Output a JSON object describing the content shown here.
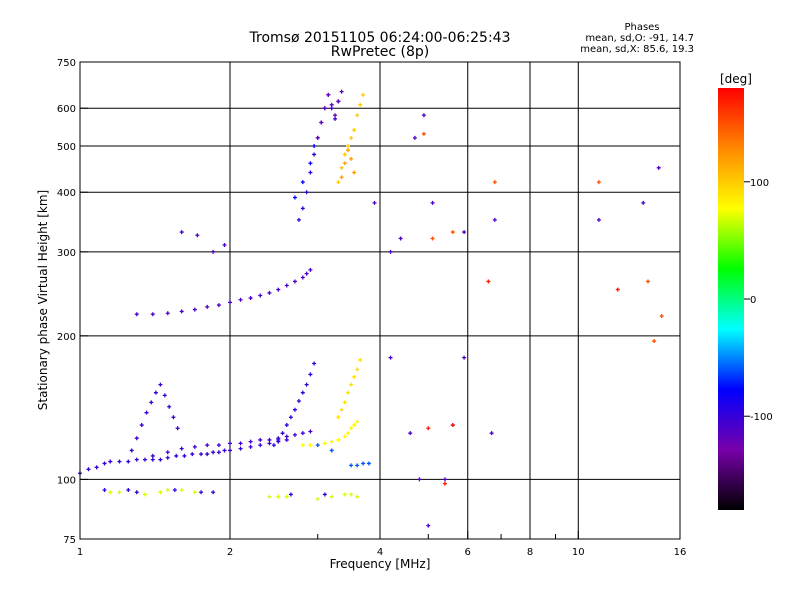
{
  "chart_data": {
    "type": "scatter",
    "title": "Tromsø 20151105 06:24:00-06:25:43",
    "subtitle": "RwPretec (8p)",
    "xlabel": "Frequency [MHz]",
    "ylabel": "Stationary phase Virtual Height [km]",
    "x_scale": "log",
    "y_scale": "log",
    "xlim": [
      1,
      16
    ],
    "ylim": [
      75,
      750
    ],
    "x_ticks": [
      1,
      2,
      4,
      6,
      8,
      10,
      16
    ],
    "x_minor_ticks": [
      3,
      5,
      7,
      9
    ],
    "y_ticks": [
      75,
      100,
      200,
      300,
      400,
      500,
      600,
      750
    ],
    "grid": true,
    "stats": {
      "heading": "Phases",
      "o_label": "mean, sd,O:",
      "o_mean": -91.0,
      "o_sd": 14.7,
      "x_label": "mean, sd,X:",
      "x_mean": 85.6,
      "x_sd": 19.3
    },
    "colorbar": {
      "label": "[deg]",
      "range": [
        -180,
        180
      ],
      "ticks": [
        100,
        0,
        -100
      ],
      "colors": [
        "#000000",
        "#7700aa",
        "#0000ff",
        "#00ffff",
        "#00ff00",
        "#ffff00",
        "#ff8800",
        "#ff0000"
      ]
    },
    "traces": [
      {
        "mode": "o",
        "f": [
          1.0,
          1.04,
          1.08,
          1.12,
          1.15,
          1.2,
          1.25,
          1.3,
          1.35,
          1.4,
          1.45,
          1.5,
          1.56,
          1.62,
          1.68,
          1.75,
          1.8,
          1.85,
          1.9,
          1.95,
          2.0,
          2.1,
          2.2,
          2.3,
          2.4,
          2.5,
          2.6
        ],
        "h": [
          103,
          105,
          106,
          108,
          109,
          109,
          109,
          110,
          110,
          110,
          110,
          111,
          112,
          112,
          113,
          113,
          113,
          114,
          114,
          115,
          115,
          116,
          117,
          118,
          119,
          120,
          121
        ],
        "phase": -100
      },
      {
        "mode": "o",
        "f": [
          1.4,
          1.5,
          1.6,
          1.7,
          1.8,
          1.9,
          2.0,
          2.1,
          2.2,
          2.3,
          2.4,
          2.5,
          2.6,
          2.7,
          2.8,
          2.9
        ],
        "h": [
          112,
          114,
          116,
          117,
          118,
          118,
          119,
          119,
          120,
          121,
          121,
          122,
          123,
          124,
          125,
          126
        ],
        "phase": -105
      },
      {
        "mode": "o",
        "f": [
          2.45,
          2.5,
          2.55,
          2.6,
          2.65,
          2.7,
          2.75,
          2.8,
          2.85,
          2.9,
          2.95
        ],
        "h": [
          118,
          121,
          125,
          130,
          135,
          140,
          146,
          152,
          158,
          166,
          175
        ],
        "phase": -100
      },
      {
        "mode": "o",
        "f": [
          1.27,
          1.3,
          1.33,
          1.36,
          1.39,
          1.42,
          1.45,
          1.48,
          1.51,
          1.54,
          1.57
        ],
        "h": [
          115,
          122,
          130,
          138,
          145,
          152,
          158,
          150,
          142,
          135,
          128
        ],
        "phase": -102
      },
      {
        "mode": "o",
        "f": [
          1.3,
          1.4,
          1.5,
          1.6,
          1.7,
          1.8,
          1.9,
          2.0,
          2.1,
          2.2,
          2.3,
          2.4,
          2.5,
          2.6,
          2.7,
          2.8,
          2.85,
          2.9
        ],
        "h": [
          222,
          222,
          223,
          225,
          227,
          230,
          232,
          235,
          238,
          240,
          243,
          246,
          250,
          255,
          260,
          265,
          270,
          275
        ],
        "phase": -110
      },
      {
        "mode": "o",
        "f": [
          1.6,
          1.72,
          1.85,
          1.95
        ],
        "h": [
          330,
          325,
          300,
          310
        ],
        "phase": -110
      },
      {
        "mode": "o",
        "f": [
          2.75,
          2.8,
          2.85,
          2.9,
          2.95,
          3.0,
          3.05,
          3.1,
          3.15,
          3.2,
          3.25,
          3.3
        ],
        "h": [
          350,
          370,
          400,
          440,
          480,
          520,
          560,
          600,
          640,
          600,
          570,
          620
        ],
        "phase": -100
      },
      {
        "mode": "o",
        "f": [
          3.0,
          3.05,
          3.1,
          3.15,
          3.2,
          3.25,
          3.3,
          3.35
        ],
        "h": [
          520,
          560,
          600,
          640,
          610,
          580,
          620,
          650
        ],
        "phase": -120
      },
      {
        "mode": "o",
        "f": [
          2.7,
          2.8,
          2.9,
          2.95
        ],
        "h": [
          390,
          420,
          460,
          500
        ],
        "phase": -80
      },
      {
        "mode": "x",
        "f": [
          3.3,
          3.35,
          3.4,
          3.45,
          3.5,
          3.55,
          3.6,
          3.65,
          3.7
        ],
        "h": [
          420,
          450,
          480,
          500,
          520,
          540,
          580,
          610,
          640
        ],
        "phase": 100
      },
      {
        "mode": "x",
        "f": [
          3.35,
          3.4,
          3.45,
          3.5,
          3.55
        ],
        "h": [
          430,
          460,
          490,
          470,
          440
        ],
        "phase": 120
      },
      {
        "mode": "x",
        "f": [
          2.8,
          2.9,
          3.0,
          3.1,
          3.2,
          3.3,
          3.4,
          3.45,
          3.5,
          3.55,
          3.6
        ],
        "h": [
          118,
          118,
          118,
          119,
          120,
          121,
          123,
          125,
          128,
          130,
          132
        ],
        "phase": 80
      },
      {
        "mode": "x",
        "f": [
          3.3,
          3.35,
          3.4,
          3.45,
          3.5,
          3.55,
          3.6,
          3.65
        ],
        "h": [
          135,
          140,
          145,
          152,
          158,
          164,
          170,
          178
        ],
        "phase": 90
      },
      {
        "mode": "x",
        "f": [
          1.15,
          1.2,
          1.3,
          1.35,
          1.45,
          1.5,
          1.6,
          1.7,
          2.4,
          2.5,
          2.6,
          3.0,
          3.2,
          3.4,
          3.5,
          3.6
        ],
        "h": [
          94,
          94,
          94,
          93,
          94,
          95,
          95,
          94,
          92,
          92,
          92,
          91,
          92,
          93,
          93,
          92
        ],
        "phase": 70
      },
      {
        "mode": "o",
        "f": [
          1.12,
          1.25,
          1.3,
          1.55,
          1.75,
          1.85,
          2.65,
          3.1
        ],
        "h": [
          95,
          95,
          94,
          95,
          94,
          94,
          93,
          93
        ],
        "phase": -100
      },
      {
        "mode": "o",
        "f": [
          3.0,
          3.2,
          3.5,
          3.6,
          3.7,
          3.8
        ],
        "h": [
          118,
          115,
          107,
          107,
          108,
          108
        ],
        "phase": -60
      },
      {
        "mode": "o",
        "f": [
          3.9,
          4.2,
          4.4,
          4.7,
          4.9,
          5.1,
          5.9,
          6.8,
          11.0,
          13.5,
          14.5
        ],
        "h": [
          380,
          300,
          320,
          520,
          580,
          380,
          330,
          350,
          350,
          380,
          450
        ],
        "phase": -110
      },
      {
        "mode": "x",
        "f": [
          4.9,
          5.1,
          5.6,
          6.8,
          11.0,
          13.8,
          14.2,
          14.7
        ],
        "h": [
          530,
          320,
          330,
          420,
          420,
          260,
          195,
          220
        ],
        "phase": 150
      },
      {
        "mode": "o",
        "f": [
          4.2,
          4.6,
          4.8,
          5.0,
          5.4,
          5.6,
          5.9,
          6.7
        ],
        "h": [
          180,
          125,
          100,
          80,
          100,
          130,
          180,
          125
        ],
        "phase": -110
      },
      {
        "mode": "x",
        "f": [
          5.0,
          5.4,
          5.6,
          6.6,
          12.0
        ],
        "h": [
          128,
          98,
          130,
          260,
          250
        ],
        "phase": 170
      }
    ]
  }
}
